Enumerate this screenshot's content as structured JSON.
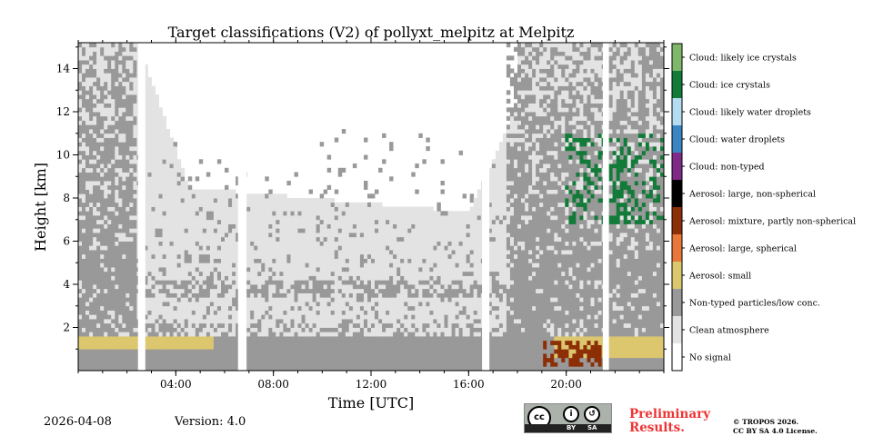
{
  "chart_data": {
    "type": "heatmap",
    "title": "Target classifications (V2) of pollyxt_melpitz at Melpitz",
    "xlabel": "Time [UTC]",
    "ylabel": "Height [km]",
    "xlim_hours": [
      0,
      24
    ],
    "ylim_km": [
      0,
      15.2
    ],
    "x_ticks": [
      {
        "value": 4,
        "label": "04:00"
      },
      {
        "value": 8,
        "label": "08:00"
      },
      {
        "value": 12,
        "label": "12:00"
      },
      {
        "value": 16,
        "label": "16:00"
      },
      {
        "value": 20,
        "label": "20:00"
      }
    ],
    "y_ticks": [
      {
        "value": 2,
        "label": "2"
      },
      {
        "value": 4,
        "label": "4"
      },
      {
        "value": 6,
        "label": "6"
      },
      {
        "value": 8,
        "label": "8"
      },
      {
        "value": 10,
        "label": "10"
      },
      {
        "value": 12,
        "label": "12"
      },
      {
        "value": 14,
        "label": "14"
      }
    ],
    "classes": [
      {
        "value": 0,
        "label": "No signal",
        "color": "#ffffff"
      },
      {
        "value": 1,
        "label": "Clean atmosphere",
        "color": "#e3e3e3"
      },
      {
        "value": 2,
        "label": "Non-typed particles/low conc.",
        "color": "#999999"
      },
      {
        "value": 3,
        "label": "Aerosol: small",
        "color": "#dcc76e"
      },
      {
        "value": 4,
        "label": "Aerosol: large, spherical",
        "color": "#e9773a"
      },
      {
        "value": 5,
        "label": "Aerosol: mixture, partly non-spherical",
        "color": "#8c2e06"
      },
      {
        "value": 6,
        "label": "Aerosol: large, non-spherical",
        "color": "#000000"
      },
      {
        "value": 7,
        "label": "Cloud: non-typed",
        "color": "#7e2a86"
      },
      {
        "value": 8,
        "label": "Cloud: water droplets",
        "color": "#3a85c4"
      },
      {
        "value": 9,
        "label": "Cloud: likely water droplets",
        "color": "#b5ddf2"
      },
      {
        "value": 10,
        "label": "Cloud: ice crystals",
        "color": "#137b39"
      },
      {
        "value": 11,
        "label": "Cloud: likely ice crystals",
        "color": "#7fb86a"
      }
    ],
    "data_gaps_hours": [
      [
        2.45,
        2.75
      ],
      [
        6.55,
        6.9
      ],
      [
        16.55,
        16.85
      ],
      [
        21.5,
        21.75
      ]
    ],
    "regions": [
      {
        "class": 2,
        "desc": "boundary layer non-typed",
        "t": [
          0,
          24
        ],
        "h": [
          0,
          1.5
        ]
      },
      {
        "class": 3,
        "desc": "small aerosol layer",
        "t": [
          0,
          5.5
        ],
        "h": [
          1.0,
          1.6
        ]
      },
      {
        "class": 3,
        "desc": "small aerosol layer",
        "t": [
          19.5,
          24
        ],
        "h": [
          0.5,
          1.5
        ]
      },
      {
        "class": 5,
        "desc": "mixed aerosol",
        "t": [
          19.0,
          21.5
        ],
        "h": [
          0.2,
          1.3
        ]
      },
      {
        "class": 10,
        "desc": "ice cloud",
        "t": [
          20.0,
          24
        ],
        "h": [
          6.8,
          11.0
        ]
      }
    ]
  },
  "footer": {
    "date": "2026-04-08",
    "version": "Version: 4.0",
    "preliminary_line1": "Preliminary",
    "preliminary_line2": "Results.",
    "copyright_line1": "© TROPOS 2026.",
    "copyright_line2": "CC BY SA 4.0 License.",
    "license_badge": {
      "cc": "cc",
      "by": "BY",
      "sa": "SA"
    }
  }
}
